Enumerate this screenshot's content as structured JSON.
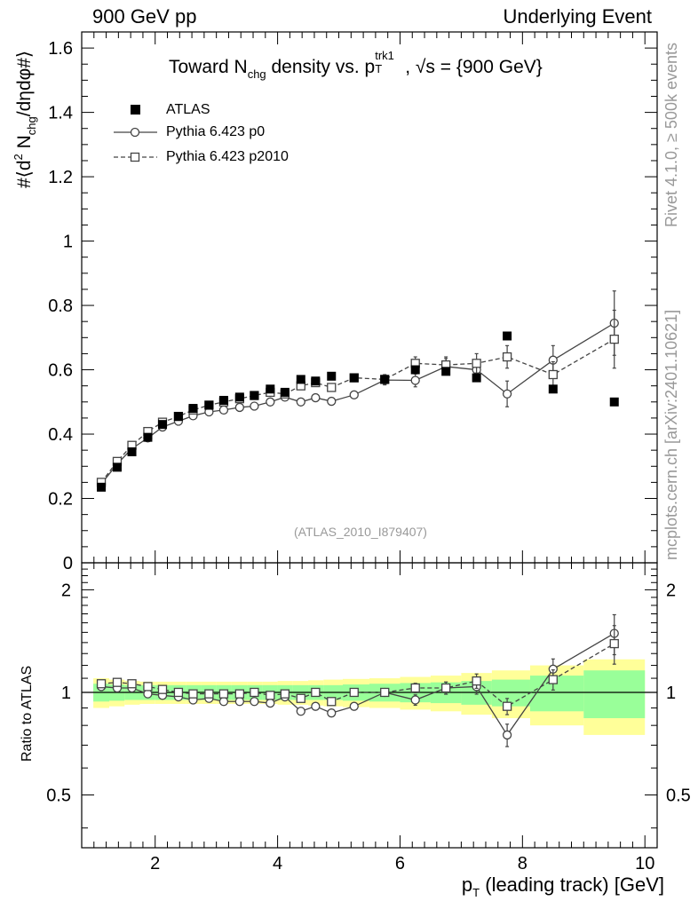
{
  "header": {
    "left": "900 GeV pp",
    "right": "Underlying Event"
  },
  "side_labels": {
    "rivet": "Rivet 4.1.0, ≥ 500k events",
    "mcplots": "mcplots.cern.ch [arXiv:2401.10621]"
  },
  "title": {
    "prefix": "Toward N",
    "nsub": "chg",
    "mid": " density vs. p",
    "psub": "T",
    "psup": "trk1",
    "suffix": ", √s = {900 GeV}"
  },
  "ylabel": {
    "a": "#⟨d",
    "sup": "2",
    "b": " N",
    "sub": "chg",
    "c": "/dηdφ#⟩"
  },
  "ratio_ylabel": "Ratio to ATLAS",
  "xlabel": {
    "a": "p",
    "sub": "T",
    "b": " (leading track) [GeV]"
  },
  "analysis_tag": "(ATLAS_2010_I879407)",
  "chart_data": {
    "type": "scatter",
    "title": "Toward N_chg density vs. pT(trk1), sqrt(s) = 900 GeV",
    "xlabel": "pT (leading track) [GeV]",
    "ylabel": "<d2 Nchg / deta dphi>",
    "xlim": [
      0.8,
      10.2
    ],
    "ylim": [
      0,
      1.65
    ],
    "ratio_ylim": [
      0.35,
      2.4
    ],
    "ratio_ylabel": "Ratio to ATLAS",
    "x_ticks": [
      2,
      4,
      6,
      8,
      10
    ],
    "y_ticks": [
      0,
      0.2,
      0.4,
      0.6,
      0.8,
      1,
      1.2,
      1.4,
      1.6
    ],
    "ratio_y_ticks": [
      0.5,
      1,
      2
    ],
    "legend_position": "top-left",
    "series": [
      {
        "name": "ATLAS",
        "style": "filled-square",
        "color": "#000000",
        "x": [
          1.12,
          1.38,
          1.62,
          1.88,
          2.12,
          2.38,
          2.62,
          2.88,
          3.12,
          3.38,
          3.62,
          3.88,
          4.12,
          4.38,
          4.62,
          4.88,
          5.25,
          5.75,
          6.25,
          6.75,
          7.25,
          7.75,
          8.5,
          9.5
        ],
        "y": [
          0.235,
          0.297,
          0.345,
          0.39,
          0.43,
          0.455,
          0.48,
          0.49,
          0.505,
          0.515,
          0.52,
          0.54,
          0.53,
          0.57,
          0.565,
          0.58,
          0.575,
          0.57,
          0.6,
          0.595,
          0.575,
          0.705,
          0.54,
          0.5
        ],
        "band_inner": [
          0.06,
          0.055,
          0.05,
          0.05,
          0.05,
          0.05,
          0.05,
          0.05,
          0.05,
          0.05,
          0.05,
          0.05,
          0.05,
          0.05,
          0.05,
          0.05,
          0.055,
          0.06,
          0.065,
          0.07,
          0.08,
          0.09,
          0.12,
          0.16
        ],
        "band_outer": [
          0.1,
          0.09,
          0.08,
          0.075,
          0.075,
          0.075,
          0.075,
          0.075,
          0.075,
          0.075,
          0.075,
          0.075,
          0.08,
          0.08,
          0.085,
          0.09,
          0.095,
          0.1,
          0.11,
          0.12,
          0.14,
          0.16,
          0.2,
          0.25
        ]
      },
      {
        "name": "Pythia 6.423 p0",
        "style": "open-circle-solid",
        "color": "#444444",
        "x": [
          1.12,
          1.38,
          1.62,
          1.88,
          2.12,
          2.38,
          2.62,
          2.88,
          3.12,
          3.38,
          3.62,
          3.88,
          4.12,
          4.38,
          4.62,
          4.88,
          5.25,
          5.75,
          6.25,
          6.75,
          7.25,
          7.75,
          8.5,
          9.5
        ],
        "y": [
          0.245,
          0.307,
          0.355,
          0.388,
          0.422,
          0.44,
          0.457,
          0.469,
          0.475,
          0.483,
          0.487,
          0.5,
          0.515,
          0.5,
          0.513,
          0.502,
          0.522,
          0.568,
          0.567,
          0.61,
          0.6,
          0.525,
          0.63,
          0.745
        ],
        "yerr": [
          0.005,
          0.005,
          0.005,
          0.005,
          0.005,
          0.005,
          0.005,
          0.005,
          0.005,
          0.005,
          0.005,
          0.006,
          0.007,
          0.008,
          0.01,
          0.01,
          0.01,
          0.015,
          0.02,
          0.025,
          0.03,
          0.04,
          0.045,
          0.1
        ],
        "ratio": [
          1.04,
          1.03,
          1.03,
          0.99,
          0.98,
          0.97,
          0.95,
          0.96,
          0.94,
          0.94,
          0.94,
          0.93,
          0.97,
          0.88,
          0.91,
          0.87,
          0.91,
          1.0,
          0.95,
          1.03,
          1.04,
          0.75,
          1.17,
          1.49
        ]
      },
      {
        "name": "Pythia 6.423 p2010",
        "style": "open-square-dashed",
        "color": "#444444",
        "x": [
          1.12,
          1.38,
          1.62,
          1.88,
          2.12,
          2.38,
          2.62,
          2.88,
          3.12,
          3.38,
          3.62,
          3.88,
          4.12,
          4.38,
          4.62,
          4.88,
          5.25,
          5.75,
          6.25,
          6.75,
          7.25,
          7.75,
          8.5,
          9.5
        ],
        "y": [
          0.25,
          0.315,
          0.365,
          0.408,
          0.437,
          0.455,
          0.475,
          0.49,
          0.5,
          0.51,
          0.52,
          0.53,
          0.525,
          0.55,
          0.56,
          0.545,
          0.575,
          0.57,
          0.62,
          0.615,
          0.62,
          0.64,
          0.585,
          0.695
        ],
        "yerr": [
          0.005,
          0.005,
          0.005,
          0.005,
          0.005,
          0.005,
          0.005,
          0.005,
          0.005,
          0.005,
          0.006,
          0.006,
          0.007,
          0.008,
          0.01,
          0.01,
          0.012,
          0.015,
          0.02,
          0.025,
          0.03,
          0.035,
          0.04,
          0.09
        ],
        "ratio": [
          1.06,
          1.07,
          1.06,
          1.04,
          1.02,
          1.0,
          0.99,
          0.99,
          0.99,
          0.99,
          1.0,
          0.98,
          0.99,
          0.96,
          1.0,
          0.94,
          1.0,
          1.0,
          1.03,
          1.03,
          1.08,
          0.91,
          1.09,
          1.39
        ]
      }
    ]
  }
}
